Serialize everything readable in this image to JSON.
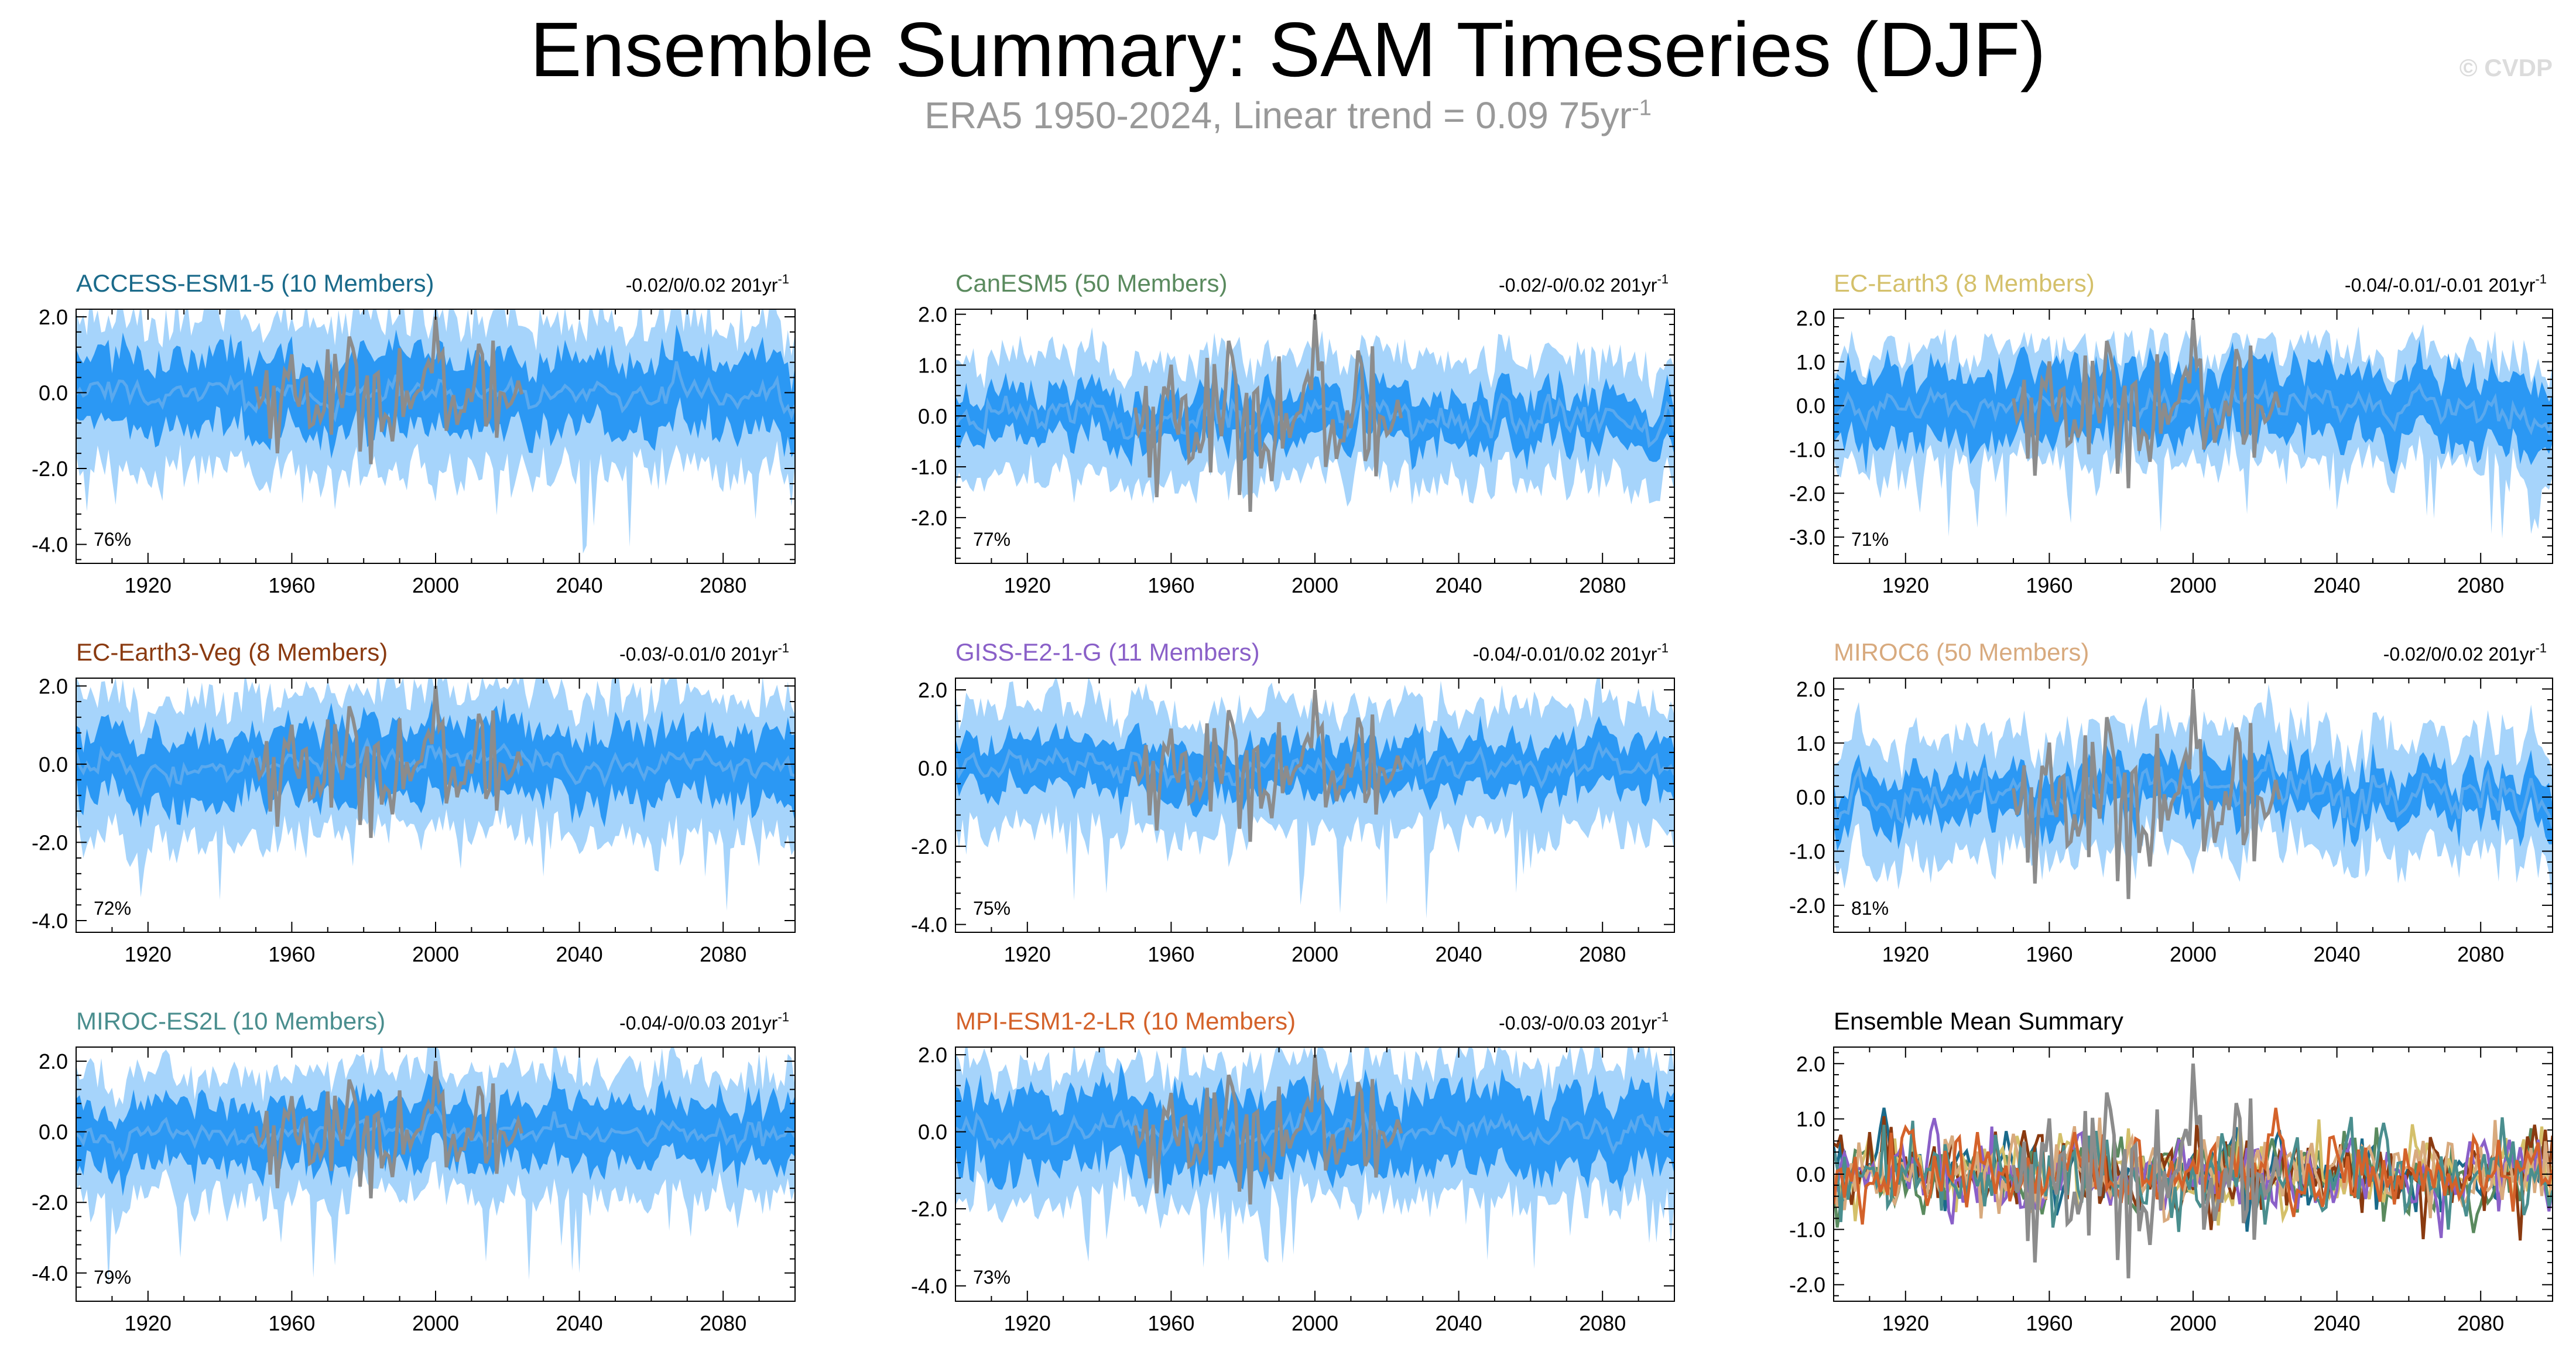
{
  "header": {
    "title": "Ensemble Summary: SAM Timeseries (DJF)",
    "subtitle_main": "ERA5 1950-2024, Linear trend = 0.09 75yr",
    "subtitle_sup": "-1",
    "credit": "© CVDP"
  },
  "colors": {
    "band_outer": "#a6d4fb",
    "band_inner": "#2b98f4",
    "ens_mean": "#5aa9ee",
    "obs": "#8c8c8c"
  },
  "chart_data": [
    {
      "type": "area",
      "title": "ACCESS-ESM1-5 (10 Members)",
      "title_color": "#1a6a8a",
      "trend": "-0.02/0/0.02 201yr",
      "pct": "76%",
      "x_ticks": [
        "1920",
        "1960",
        "2000",
        "2040",
        "2080"
      ],
      "y_ticks": [
        "2.0",
        "0.0",
        "-2.0",
        "-4.0"
      ],
      "ylim": [
        -4.5,
        2.2
      ],
      "outer": 2.0,
      "inner": 1.1,
      "spike": 4.3,
      "obs_std": 1.0,
      "seed": 11
    },
    {
      "type": "area",
      "title": "CanESM5 (50 Members)",
      "title_color": "#5a8a5e",
      "trend": "-0.02/-0/0.02 201yr",
      "pct": "77%",
      "x_ticks": [
        "1920",
        "1960",
        "2000",
        "2040",
        "2080"
      ],
      "y_ticks": [
        "2.0",
        "1.0",
        "0.0",
        "-1.0",
        "-2.0"
      ],
      "ylim": [
        -2.9,
        2.1
      ],
      "outer": 1.2,
      "inner": 0.55,
      "spike": 1.6,
      "obs_std": 1.0,
      "seed": 23
    },
    {
      "type": "area",
      "title": "EC-Earth3 (8 Members)",
      "title_color": "#d4c06a",
      "trend": "-0.04/-0.01/-0.01 201yr",
      "pct": "71%",
      "x_ticks": [
        "1920",
        "1960",
        "2000",
        "2040",
        "2080"
      ],
      "y_ticks": [
        "2.0",
        "1.0",
        "0.0",
        "-1.0",
        "-2.0",
        "-3.0"
      ],
      "ylim": [
        -3.6,
        2.2
      ],
      "outer": 1.3,
      "inner": 0.9,
      "spike": 3.0,
      "obs_std": 1.0,
      "seed": 37
    },
    {
      "type": "area",
      "title": "EC-Earth3-Veg (8 Members)",
      "title_color": "#8a3a10",
      "trend": "-0.03/-0.01/0 201yr",
      "pct": "72%",
      "x_ticks": [
        "1920",
        "1960",
        "2000",
        "2040",
        "2080"
      ],
      "y_ticks": [
        "2.0",
        "0.0",
        "-2.0",
        "-4.0"
      ],
      "ylim": [
        -4.3,
        2.2
      ],
      "outer": 1.8,
      "inner": 1.0,
      "spike": 3.8,
      "obs_std": 1.0,
      "seed": 41
    },
    {
      "type": "area",
      "title": "GISS-E2-1-G (11 Members)",
      "title_color": "#8a60c8",
      "trend": "-0.04/-0.01/0.02 201yr",
      "pct": "75%",
      "x_ticks": [
        "1920",
        "1960",
        "2000",
        "2040",
        "2080"
      ],
      "y_ticks": [
        "2.0",
        "0.0",
        "-2.0",
        "-4.0"
      ],
      "ylim": [
        -4.2,
        2.3
      ],
      "outer": 1.6,
      "inner": 0.75,
      "spike": 3.5,
      "obs_std": 1.0,
      "seed": 53
    },
    {
      "type": "area",
      "title": "MIROC6 (50 Members)",
      "title_color": "#d8aa7e",
      "trend": "-0.02/0/0.02 201yr",
      "pct": "81%",
      "x_ticks": [
        "1920",
        "1960",
        "2000",
        "2040",
        "2080"
      ],
      "y_ticks": [
        "2.0",
        "1.0",
        "0.0",
        "-1.0",
        "-2.0"
      ],
      "ylim": [
        -2.5,
        2.2
      ],
      "outer": 1.1,
      "inner": 0.5,
      "spike": 1.5,
      "obs_std": 1.0,
      "seed": 67
    },
    {
      "type": "area",
      "title": "MIROC-ES2L (10 Members)",
      "title_color": "#4a8e8e",
      "trend": "-0.04/-0/0.03 201yr",
      "pct": "79%",
      "x_ticks": [
        "1920",
        "1960",
        "2000",
        "2040",
        "2080"
      ],
      "y_ticks": [
        "2.0",
        "0.0",
        "-2.0",
        "-4.0"
      ],
      "ylim": [
        -4.8,
        2.4
      ],
      "outer": 1.8,
      "inner": 1.0,
      "spike": 4.3,
      "obs_std": 1.0,
      "seed": 71
    },
    {
      "type": "area",
      "title": "MPI-ESM1-2-LR (10 Members)",
      "title_color": "#d4622a",
      "trend": "-0.03/-0/0.03 201yr",
      "pct": "73%",
      "x_ticks": [
        "1920",
        "1960",
        "2000",
        "2040",
        "2080"
      ],
      "y_ticks": [
        "2.0",
        "0.0",
        "-2.0",
        "-4.0"
      ],
      "ylim": [
        -4.4,
        2.2
      ],
      "outer": 1.8,
      "inner": 1.1,
      "spike": 3.8,
      "obs_std": 1.0,
      "seed": 83
    },
    {
      "type": "line",
      "title": "Ensemble Mean Summary",
      "title_color": "#000000",
      "x_ticks": [
        "1920",
        "1960",
        "2000",
        "2040",
        "2080"
      ],
      "y_ticks": [
        "2.0",
        "1.0",
        "0.0",
        "-1.0",
        "-2.0"
      ],
      "ylim": [
        -2.3,
        2.3
      ],
      "series": [
        {
          "name": "ACCESS-ESM1-5",
          "color": "#1a6a8a"
        },
        {
          "name": "CanESM5",
          "color": "#5a8a5e"
        },
        {
          "name": "EC-Earth3",
          "color": "#d4c06a"
        },
        {
          "name": "EC-Earth3-Veg",
          "color": "#8a3a10"
        },
        {
          "name": "GISS-E2-1-G",
          "color": "#8a60c8"
        },
        {
          "name": "MIROC6",
          "color": "#d8aa7e"
        },
        {
          "name": "MIROC-ES2L",
          "color": "#4a8e8e"
        },
        {
          "name": "MPI-ESM1-2-LR",
          "color": "#d4622a"
        }
      ],
      "ens_amp": 0.35,
      "obs_std": 1.0,
      "seed": 97
    }
  ],
  "x_range": [
    1900,
    2100
  ],
  "obs_range": [
    1950,
    2024
  ]
}
